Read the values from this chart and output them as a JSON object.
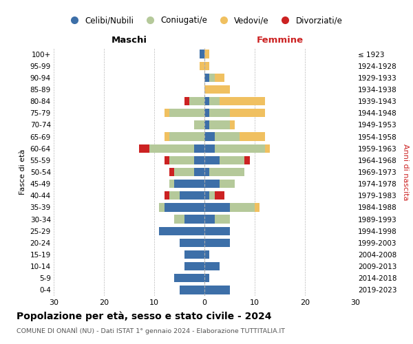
{
  "age_groups": [
    "100+",
    "95-99",
    "90-94",
    "85-89",
    "80-84",
    "75-79",
    "70-74",
    "65-69",
    "60-64",
    "55-59",
    "50-54",
    "45-49",
    "40-44",
    "35-39",
    "30-34",
    "25-29",
    "20-24",
    "15-19",
    "10-14",
    "5-9",
    "0-4"
  ],
  "birth_years": [
    "≤ 1923",
    "1924-1928",
    "1929-1933",
    "1934-1938",
    "1939-1943",
    "1944-1948",
    "1949-1953",
    "1954-1958",
    "1959-1963",
    "1964-1968",
    "1969-1973",
    "1974-1978",
    "1979-1983",
    "1984-1988",
    "1989-1993",
    "1994-1998",
    "1999-2003",
    "2004-2008",
    "2009-2013",
    "2014-2018",
    "2019-2023"
  ],
  "maschi": {
    "celibi": [
      1,
      0,
      0,
      0,
      0,
      0,
      0,
      0,
      2,
      2,
      2,
      6,
      5,
      8,
      4,
      9,
      5,
      4,
      4,
      6,
      5
    ],
    "coniugati": [
      0,
      0,
      0,
      0,
      3,
      7,
      2,
      7,
      9,
      5,
      4,
      1,
      2,
      1,
      2,
      0,
      0,
      0,
      0,
      0,
      0
    ],
    "vedovi": [
      0,
      1,
      0,
      0,
      0,
      1,
      0,
      1,
      0,
      0,
      0,
      0,
      0,
      0,
      0,
      0,
      0,
      0,
      0,
      0,
      0
    ],
    "divorziati": [
      0,
      0,
      0,
      0,
      1,
      0,
      0,
      0,
      2,
      1,
      1,
      0,
      1,
      0,
      0,
      0,
      0,
      0,
      0,
      0,
      0
    ]
  },
  "femmine": {
    "nubili": [
      0,
      0,
      1,
      0,
      1,
      1,
      1,
      2,
      2,
      3,
      1,
      3,
      1,
      5,
      2,
      5,
      5,
      1,
      3,
      1,
      5
    ],
    "coniugate": [
      0,
      0,
      1,
      0,
      2,
      4,
      4,
      5,
      10,
      5,
      7,
      3,
      1,
      5,
      3,
      0,
      0,
      0,
      0,
      0,
      0
    ],
    "vedove": [
      1,
      1,
      2,
      5,
      9,
      7,
      1,
      5,
      1,
      0,
      0,
      0,
      0,
      1,
      0,
      0,
      0,
      0,
      0,
      0,
      0
    ],
    "divorziate": [
      0,
      0,
      0,
      0,
      0,
      0,
      0,
      0,
      0,
      1,
      0,
      0,
      2,
      0,
      0,
      0,
      0,
      0,
      0,
      0,
      0
    ]
  },
  "colors": {
    "celibi_nubili": "#3d6fa8",
    "coniugati": "#b5c99a",
    "vedovi": "#f0c060",
    "divorziati": "#cc2222"
  },
  "xlim": 30,
  "title": "Popolazione per età, sesso e stato civile - 2024",
  "subtitle": "COMUNE DI ONANÌ (NU) - Dati ISTAT 1° gennaio 2024 - Elaborazione TUTTITALIA.IT",
  "ylabel_left": "Fasce di età",
  "ylabel_right": "Anni di nascita",
  "legend_labels": [
    "Celibi/Nubili",
    "Coniugati/e",
    "Vedovi/e",
    "Divorziati/e"
  ],
  "maschi_label": "Maschi",
  "femmine_label": "Femmine"
}
